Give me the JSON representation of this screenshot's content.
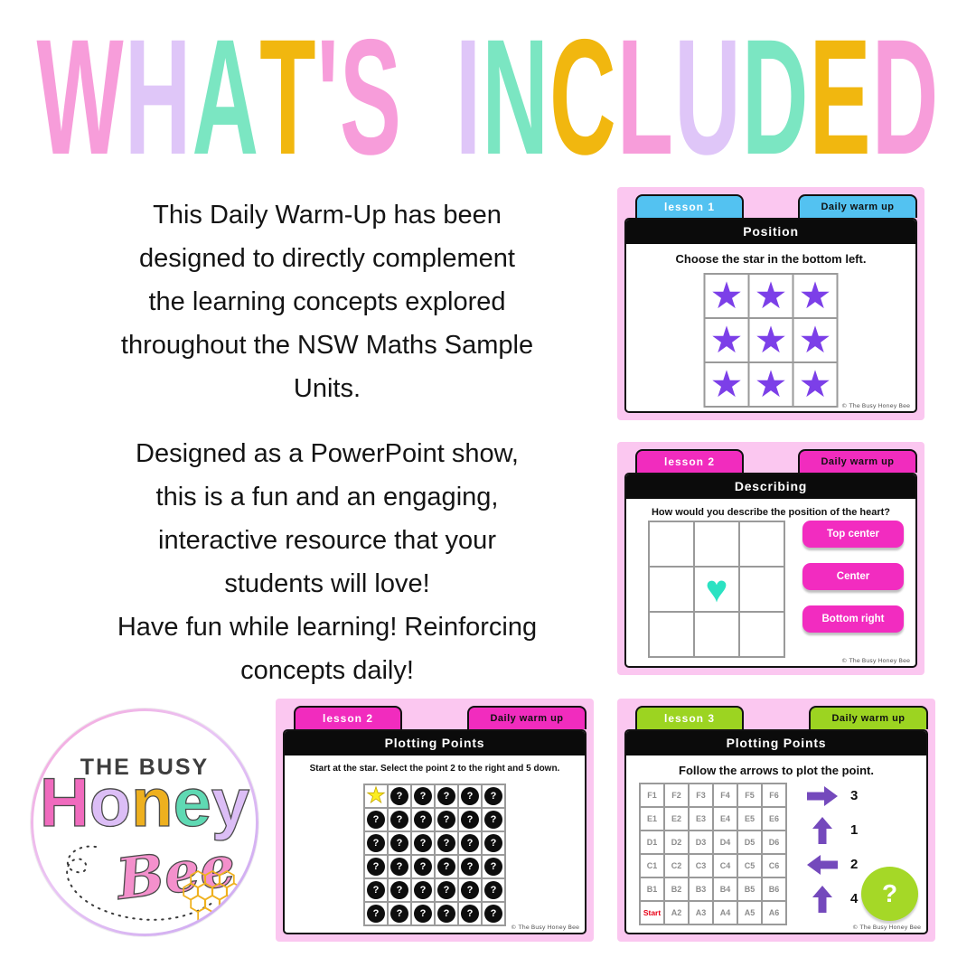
{
  "title": {
    "text": "WHAT'S INCLUDED",
    "letters": [
      {
        "ch": "W",
        "color": "#F79DDA"
      },
      {
        "ch": "H",
        "color": "#DFC6F8"
      },
      {
        "ch": "A",
        "color": "#7BE6C2"
      },
      {
        "ch": "T",
        "color": "#F1B70F"
      },
      {
        "ch": "'",
        "color": "#F79DDA"
      },
      {
        "ch": "S",
        "color": "#F79DDA"
      },
      {
        "ch": " "
      },
      {
        "ch": "I",
        "color": "#DFC6F8"
      },
      {
        "ch": "N",
        "color": "#7BE6C2"
      },
      {
        "ch": "C",
        "color": "#F1B70F"
      },
      {
        "ch": "L",
        "color": "#F79DDA"
      },
      {
        "ch": "U",
        "color": "#DFC6F8"
      },
      {
        "ch": "D",
        "color": "#7BE6C2"
      },
      {
        "ch": "E",
        "color": "#F1B70F"
      },
      {
        "ch": "D",
        "color": "#F79DDA"
      }
    ]
  },
  "intro_paragraphs": [
    {
      "lines": [
        "This Daily Warm-Up has been",
        "designed to directly complement",
        "the learning concepts explored",
        "throughout the NSW Maths Sample",
        "Units."
      ]
    },
    {
      "lines": [
        "Designed as a PowerPoint show,",
        "this is a fun and an engaging,",
        "interactive resource that your",
        "students will love!",
        "Have fun while learning! Reinforcing",
        "concepts daily!"
      ]
    }
  ],
  "logo": {
    "top_text": "THE BUSY",
    "honey_letters": [
      {
        "ch": "H",
        "color": "#F06BBE"
      },
      {
        "ch": "o",
        "color": "#DCBEF6"
      },
      {
        "ch": "n",
        "color": "#EEB01F"
      },
      {
        "ch": "e",
        "color": "#5FD9B3"
      },
      {
        "ch": "y",
        "color": "#DCBEF6"
      }
    ],
    "bee_text": "Bee",
    "bee_color": "#F490CC",
    "honeycomb_color": "#EFB11F",
    "trail_color": "#3A3A3A"
  },
  "cards": [
    {
      "tab_label": "lesson 1",
      "corner_label": "Daily warm up",
      "accent": "#53C2F1",
      "title": "Position",
      "instruction": "Choose the star in the bottom left.",
      "grid": {
        "rows": 3,
        "cols": 3,
        "symbol": "★",
        "symbol_color": "#7C3FE8"
      },
      "footer": "© The Busy Honey Bee"
    },
    {
      "tab_label": "lesson 2",
      "corner_label": "Daily warm up",
      "accent": "#F12CBE",
      "title": "Describing",
      "instruction": "How would you describe the position of the heart?",
      "grid": {
        "rows": 3,
        "cols": 3,
        "heart_cell": [
          1,
          1
        ],
        "symbol": "♥",
        "symbol_color": "#2BE2C2"
      },
      "buttons": [
        "Top center",
        "Center",
        "Bottom right"
      ],
      "footer": "© The Busy Honey Bee"
    },
    {
      "tab_label": "lesson 2",
      "corner_label": "Daily warm up",
      "accent": "#F12CBE",
      "title": "Plotting Points",
      "instruction": "Start at the star. Select the point 2 to the right and 5 down.",
      "grid": {
        "rows": 6,
        "cols": 6,
        "star_cell": [
          0,
          0
        ],
        "star_symbol": "★",
        "star_color": "#FCEE21",
        "dot_symbol": "?",
        "dot_color": "#0D0D0D"
      },
      "footer": "© The Busy Honey Bee"
    },
    {
      "tab_label": "lesson 3",
      "corner_label": "Daily warm up",
      "accent": "#9CD421",
      "title": "Plotting Points",
      "instruction": "Follow the arrows to plot the point.",
      "grid_rows": [
        [
          "F1",
          "F2",
          "F3",
          "F4",
          "F5",
          "F6"
        ],
        [
          "E1",
          "E2",
          "E3",
          "E4",
          "E5",
          "E6"
        ],
        [
          "D1",
          "D2",
          "D3",
          "D4",
          "D5",
          "D6"
        ],
        [
          "C1",
          "C2",
          "C3",
          "C4",
          "C5",
          "C6"
        ],
        [
          "B1",
          "B2",
          "B3",
          "B4",
          "B5",
          "B6"
        ],
        [
          "Start",
          "A2",
          "A3",
          "A4",
          "A5",
          "A6"
        ]
      ],
      "start_label": "Start",
      "arrows": [
        {
          "dir": "right",
          "value": "3"
        },
        {
          "dir": "up",
          "value": "1"
        },
        {
          "dir": "left",
          "value": "2"
        },
        {
          "dir": "up",
          "value": "4"
        }
      ],
      "arrow_color": "#7449BC",
      "mystery_circle": {
        "symbol": "?",
        "color": "#A5D827"
      },
      "footer": "© The Busy Honey Bee"
    }
  ]
}
